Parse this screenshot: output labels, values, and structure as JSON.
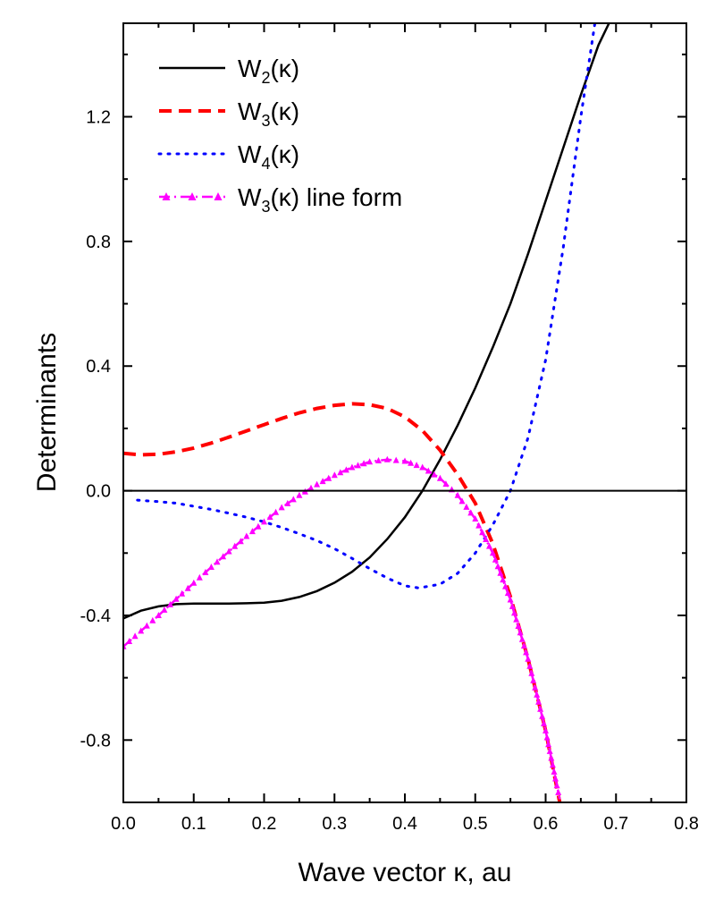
{
  "chart_data": {
    "type": "line",
    "title": "",
    "xlabel": "Wave vector  κ, au",
    "ylabel": "Determinants",
    "xlim": [
      0.0,
      0.8
    ],
    "ylim": [
      -1.0,
      1.5
    ],
    "x_ticks": [
      "0.0",
      "0.1",
      "0.2",
      "0.3",
      "0.4",
      "0.5",
      "0.6",
      "0.7",
      "0.8"
    ],
    "x_tick_values": [
      0.0,
      0.1,
      0.2,
      0.3,
      0.4,
      0.5,
      0.6,
      0.7,
      0.8
    ],
    "y_ticks": [
      "-0.8",
      "-0.4",
      "0.0",
      "0.4",
      "0.8",
      "1.2"
    ],
    "y_tick_values": [
      -0.8,
      -0.4,
      0.0,
      0.4,
      0.8,
      1.2
    ],
    "zero_line": true,
    "grid": false,
    "legend_position": "top-left",
    "series": [
      {
        "name": "W2(κ)",
        "legend_base": "W",
        "legend_sub": "2",
        "legend_suffix": "(κ)",
        "color": "#000000",
        "style": "solid",
        "x": [
          0.0,
          0.025,
          0.05,
          0.075,
          0.1,
          0.125,
          0.15,
          0.175,
          0.2,
          0.225,
          0.25,
          0.275,
          0.3,
          0.325,
          0.35,
          0.375,
          0.4,
          0.425,
          0.45,
          0.475,
          0.5,
          0.525,
          0.55,
          0.575,
          0.6,
          0.625,
          0.65,
          0.675,
          0.69
        ],
        "y": [
          -0.41,
          -0.385,
          -0.371,
          -0.364,
          -0.362,
          -0.362,
          -0.362,
          -0.361,
          -0.359,
          -0.353,
          -0.341,
          -0.322,
          -0.295,
          -0.26,
          -0.214,
          -0.155,
          -0.085,
          0.0,
          0.1,
          0.21,
          0.33,
          0.46,
          0.6,
          0.76,
          0.93,
          1.1,
          1.27,
          1.43,
          1.5
        ]
      },
      {
        "name": "W3(κ)",
        "legend_base": "W",
        "legend_sub": "3",
        "legend_suffix": "(κ)",
        "color": "#ff0000",
        "style": "dashed",
        "x": [
          0.0,
          0.025,
          0.05,
          0.075,
          0.1,
          0.125,
          0.15,
          0.175,
          0.2,
          0.225,
          0.25,
          0.275,
          0.3,
          0.325,
          0.35,
          0.375,
          0.4,
          0.425,
          0.45,
          0.475,
          0.5,
          0.525,
          0.55,
          0.575,
          0.6,
          0.62
        ],
        "y": [
          0.12,
          0.115,
          0.117,
          0.125,
          0.137,
          0.153,
          0.172,
          0.192,
          0.212,
          0.232,
          0.25,
          0.264,
          0.274,
          0.279,
          0.276,
          0.264,
          0.237,
          0.193,
          0.13,
          0.052,
          -0.04,
          -0.17,
          -0.34,
          -0.54,
          -0.77,
          -1.0
        ]
      },
      {
        "name": "W4(κ)",
        "legend_base": "W",
        "legend_sub": "4",
        "legend_suffix": "(κ)",
        "color": "#0000ff",
        "style": "dotted",
        "x": [
          0.02,
          0.05,
          0.075,
          0.1,
          0.125,
          0.15,
          0.175,
          0.2,
          0.225,
          0.25,
          0.275,
          0.3,
          0.325,
          0.35,
          0.375,
          0.4,
          0.42,
          0.45,
          0.475,
          0.5,
          0.525,
          0.55,
          0.575,
          0.6,
          0.625,
          0.65,
          0.67
        ],
        "y": [
          -0.03,
          -0.035,
          -0.04,
          -0.05,
          -0.06,
          -0.072,
          -0.085,
          -0.1,
          -0.118,
          -0.138,
          -0.16,
          -0.186,
          -0.217,
          -0.25,
          -0.28,
          -0.305,
          -0.312,
          -0.3,
          -0.265,
          -0.2,
          -0.11,
          0.0,
          0.17,
          0.42,
          0.78,
          1.2,
          1.5
        ]
      },
      {
        "name": "W3(κ) line form",
        "legend_base": "W",
        "legend_sub": "3",
        "legend_suffix": "(κ) line form",
        "color": "#ff00ff",
        "style": "dashdot-triangle",
        "x": [
          0.0,
          0.025,
          0.05,
          0.075,
          0.1,
          0.125,
          0.15,
          0.175,
          0.2,
          0.225,
          0.25,
          0.275,
          0.3,
          0.325,
          0.35,
          0.375,
          0.4,
          0.425,
          0.45,
          0.475,
          0.5,
          0.525,
          0.55,
          0.575,
          0.6,
          0.62
        ],
        "y": [
          -0.5,
          -0.45,
          -0.4,
          -0.348,
          -0.296,
          -0.245,
          -0.195,
          -0.146,
          -0.1,
          -0.054,
          -0.015,
          0.02,
          0.05,
          0.075,
          0.093,
          0.1,
          0.095,
          0.075,
          0.04,
          -0.015,
          -0.09,
          -0.2,
          -0.35,
          -0.54,
          -0.77,
          -0.99
        ]
      }
    ]
  }
}
